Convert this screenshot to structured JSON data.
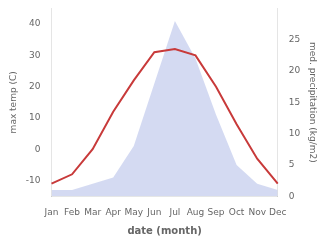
{
  "chart_data": {
    "type": "line",
    "categories": [
      "Jan",
      "Feb",
      "Mar",
      "Apr",
      "May",
      "Jun",
      "Jul",
      "Aug",
      "Sep",
      "Oct",
      "Nov",
      "Dec"
    ],
    "series": [
      {
        "type": "area",
        "color": "#b0bce8",
        "axis": "y2",
        "values": [
          1,
          1,
          2,
          3,
          8,
          18,
          28,
          22,
          13,
          5,
          2,
          1
        ]
      },
      {
        "type": "line",
        "color": "#c83a3a",
        "values": [
          -11,
          -8,
          0,
          12,
          22,
          31,
          32,
          30,
          20,
          8,
          -3,
          -11
        ]
      }
    ],
    "xlabel": "date (month)",
    "ylabel": "max temp (C)",
    "y2label": "med. precipitation (kg/m2)",
    "ylim": [
      -15,
      45
    ],
    "yticks": [
      -10,
      0,
      10,
      20,
      30,
      40
    ],
    "y2lim": [
      0,
      30
    ],
    "y2ticks": [
      0,
      5,
      10,
      15,
      20,
      25
    ],
    "grid": false
  }
}
